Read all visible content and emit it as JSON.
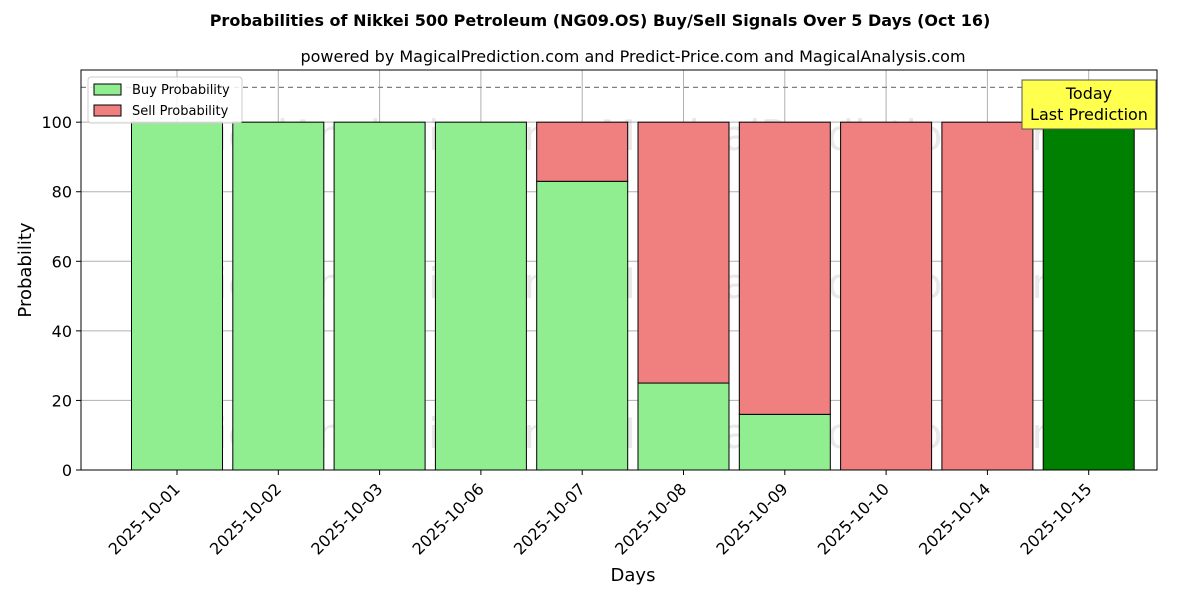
{
  "chart_data": {
    "type": "bar",
    "stacked": true,
    "title": "Probabilities of Nikkei 500 Petroleum (NG09.OS) Buy/Sell Signals Over 5 Days (Oct 16)",
    "subtitle": "powered by MagicalPrediction.com and Predict-Price.com and MagicalAnalysis.com",
    "xlabel": "Days",
    "ylabel": "Probability",
    "ylim": [
      0,
      115
    ],
    "yticks": [
      0,
      20,
      40,
      60,
      80,
      100
    ],
    "grid": true,
    "legend_position": "top-left",
    "reference_line": 110,
    "categories": [
      "2025-10-01",
      "2025-10-02",
      "2025-10-03",
      "2025-10-06",
      "2025-10-07",
      "2025-10-08",
      "2025-10-09",
      "2025-10-10",
      "2025-10-14",
      "2025-10-15"
    ],
    "series": [
      {
        "name": "Buy Probability",
        "color": "#90ee90",
        "values": [
          100,
          100,
          100,
          100,
          83,
          25,
          16,
          0,
          0,
          100
        ]
      },
      {
        "name": "Sell Probability",
        "color": "#f08080",
        "values": [
          0,
          0,
          0,
          0,
          17,
          75,
          84,
          100,
          100,
          0
        ]
      }
    ],
    "highlight": {
      "index": 9,
      "color": "#008000"
    },
    "annotation": {
      "lines": [
        "Today",
        "Last Prediction"
      ],
      "background": "#ffff4d"
    },
    "watermarks": [
      "MagicalAnalysis.com",
      "MagicalPrediction.com"
    ]
  }
}
